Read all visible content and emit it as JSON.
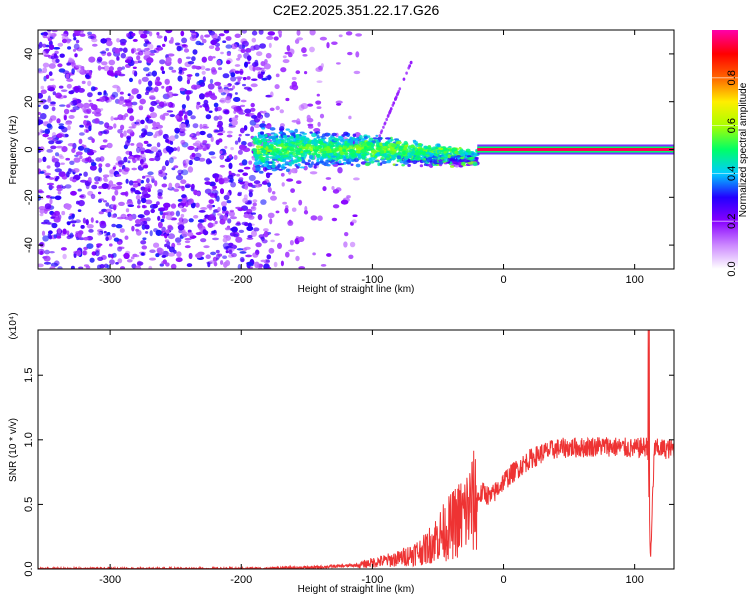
{
  "title": "C2E2.2025.351.22.17.G26",
  "chart_data": [
    {
      "type": "heatmap",
      "xlabel": "Height of straight line (km)",
      "ylabel": "Frequency (Hz)",
      "xlim": [
        -355,
        130
      ],
      "ylim": [
        -50,
        50
      ],
      "x_ticks": [
        -300,
        -200,
        -100,
        0,
        100
      ],
      "y_ticks": [
        -40,
        -20,
        0,
        20,
        40
      ],
      "colorbar": {
        "label": "Normalized spectral amplitude",
        "range": [
          0,
          1
        ],
        "ticks": [
          "0.0",
          "0.2",
          "0.4",
          "0.6",
          "0.8"
        ],
        "colormap": [
          "#ffffff",
          "#cc88ff",
          "#8800ff",
          "#2200ff",
          "#00ccff",
          "#00ff66",
          "#aaff00",
          "#ffee00",
          "#ff6600",
          "#ff0000",
          "#ff00aa"
        ]
      },
      "signal_line": {
        "x_range": [
          -20,
          130
        ],
        "frequency": 0,
        "amplitude": 0.95
      },
      "noise_region": {
        "x_range": [
          -355,
          -110
        ],
        "frequency_range": [
          -50,
          50
        ]
      },
      "spread_region": {
        "x_range": [
          -190,
          -20
        ],
        "frequency_range": [
          -10,
          10
        ]
      }
    },
    {
      "type": "line",
      "xlabel": "Height of straight line (km)",
      "ylabel": "SNR (10 * v/v)",
      "y_multiplier": "(x10⁴)",
      "xlim": [
        -355,
        130
      ],
      "ylim": [
        0,
        1.85
      ],
      "x_ticks": [
        -300,
        -200,
        -100,
        0,
        100
      ],
      "y_ticks": [
        "0.0",
        "0.5",
        "1.0",
        "1.5"
      ],
      "line_color": "#ee3333",
      "series": [
        {
          "x": [
            -355,
            -300,
            -250,
            -200,
            -150,
            -110,
            -100,
            -80,
            -60,
            -50,
            -40,
            -30,
            -20,
            -15,
            -10,
            0,
            10,
            20,
            30,
            40,
            50,
            60,
            70,
            80,
            90,
            100,
            105,
            110,
            112,
            115,
            120,
            130
          ],
          "values": [
            0.0,
            0.0,
            0.0,
            0.0,
            0.01,
            0.03,
            0.05,
            0.08,
            0.15,
            0.25,
            0.33,
            0.42,
            0.55,
            0.6,
            0.55,
            0.68,
            0.77,
            0.85,
            0.9,
            0.93,
            0.94,
            0.94,
            0.95,
            0.95,
            0.94,
            0.93,
            0.94,
            0.95,
            0.06,
            0.93,
            0.93,
            0.93
          ]
        }
      ]
    }
  ]
}
